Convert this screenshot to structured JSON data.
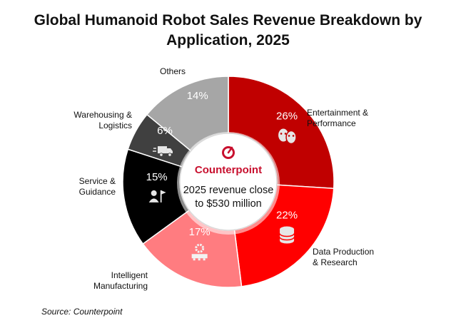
{
  "title_line1": "Global Humanoid Robot Sales Revenue Breakdown by",
  "title_line2": "Application, 2025",
  "source": "Source: Counterpoint",
  "center": {
    "brand": "Counterpoint",
    "line1": "2025 revenue close",
    "line2": "to $530 million"
  },
  "chart_data": {
    "type": "pie",
    "title": "Global Humanoid Robot Sales Revenue Breakdown by Application, 2025",
    "unit": "%",
    "slices": [
      {
        "label": "Entertainment & Performance",
        "lines": [
          "Entertainment &",
          "Performance"
        ],
        "value": 26,
        "display": "26%",
        "color": "#c00000",
        "icon": "theater-masks-icon"
      },
      {
        "label": "Data Production & Research",
        "lines": [
          "Data Production",
          "& Research"
        ],
        "value": 22,
        "display": "22%",
        "color": "#ff0000",
        "icon": "database-icon"
      },
      {
        "label": "Intelligent Manufacturing",
        "lines": [
          "Intelligent",
          "Manufacturing"
        ],
        "value": 17,
        "display": "17%",
        "color": "#ff7c80",
        "icon": "factory-gear-icon"
      },
      {
        "label": "Service & Guidance",
        "lines": [
          "Service &",
          "Guidance"
        ],
        "value": 15,
        "display": "15%",
        "color": "#000000",
        "icon": "guide-person-flag-icon"
      },
      {
        "label": "Warehousing & Logistics",
        "lines": [
          "Warehousing &",
          "Logistics"
        ],
        "value": 6,
        "display": "6%",
        "color": "#404040",
        "icon": "delivery-truck-icon"
      },
      {
        "label": "Others",
        "lines": [
          "Others"
        ],
        "value": 14,
        "display": "14%",
        "color": "#a6a6a6",
        "icon": ""
      }
    ]
  }
}
